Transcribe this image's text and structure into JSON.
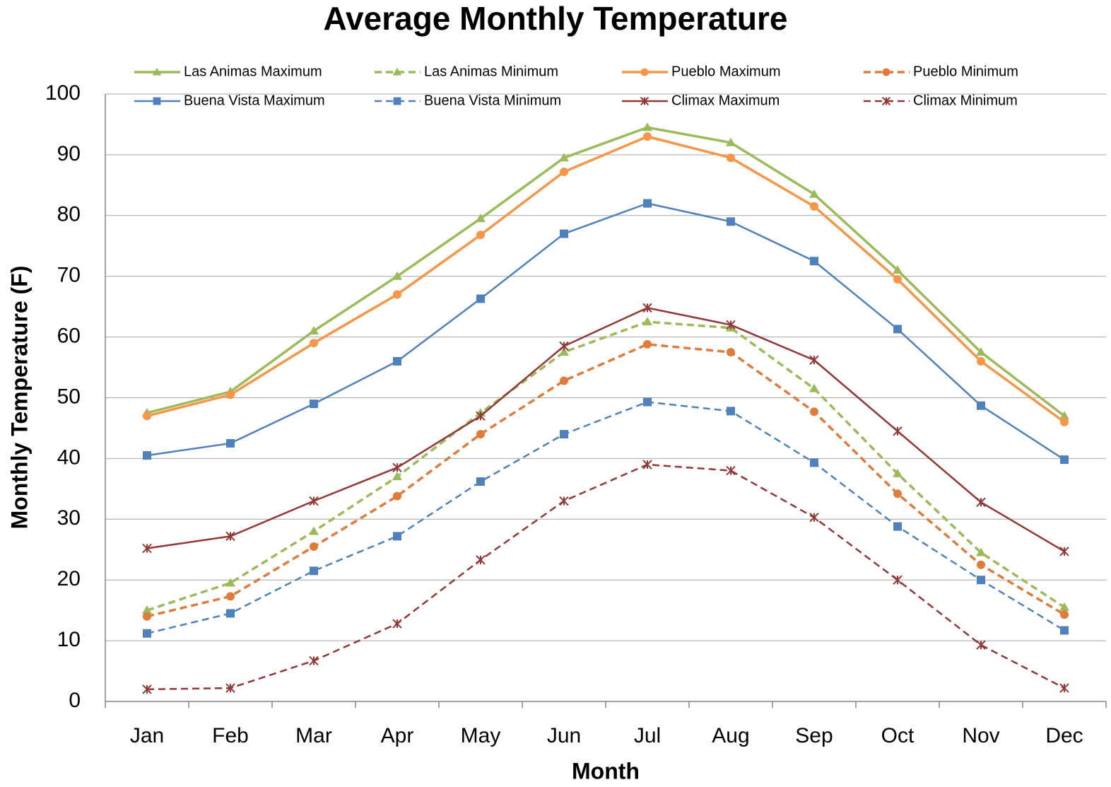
{
  "chart_data": {
    "type": "line",
    "title": "Average Monthly Temperature",
    "x_label": "Month",
    "y_label": "Monthly Temperature (F)",
    "categories": [
      "Jan",
      "Feb",
      "Mar",
      "Apr",
      "May",
      "Jun",
      "Jul",
      "Aug",
      "Sep",
      "Oct",
      "Nov",
      "Dec"
    ],
    "ylim": [
      0,
      100
    ],
    "yticks": [
      0,
      10,
      20,
      30,
      40,
      50,
      60,
      70,
      80,
      90,
      100
    ],
    "grid": true,
    "legend": "top",
    "series": [
      {
        "name": "Las Animas Maximum",
        "color": "#9bbb59",
        "marker": "triangle",
        "dashed": false,
        "values": [
          47.5,
          51,
          61,
          70,
          79.5,
          89.5,
          94.5,
          92,
          83.5,
          71,
          57.5,
          47
        ]
      },
      {
        "name": "Las Animas Minimum",
        "color": "#9bbb59",
        "marker": "triangle",
        "dashed": true,
        "values": [
          15,
          19.5,
          28,
          37,
          47.5,
          57.5,
          62.5,
          61.5,
          51.5,
          37.5,
          24.5,
          15.5
        ]
      },
      {
        "name": "Pueblo Maximum",
        "color": "#f79646",
        "marker": "circle",
        "dashed": false,
        "values": [
          47,
          50.5,
          59,
          67,
          76.8,
          87.2,
          93,
          89.5,
          81.5,
          69.5,
          56,
          46
        ]
      },
      {
        "name": "Pueblo Minimum",
        "color": "#e07b39",
        "marker": "circle",
        "dashed": true,
        "values": [
          14,
          17.3,
          25.5,
          33.8,
          44,
          52.8,
          58.8,
          57.5,
          47.7,
          34.2,
          22.5,
          14.3
        ]
      },
      {
        "name": "Buena Vista Maximum",
        "color": "#4f81bd",
        "marker": "square",
        "dashed": false,
        "values": [
          40.5,
          42.5,
          49,
          56,
          66.3,
          77,
          82,
          79,
          72.5,
          61.3,
          48.7,
          39.8
        ]
      },
      {
        "name": "Buena Vista Minimum",
        "color": "#4f81bd",
        "marker": "square",
        "dashed": true,
        "values": [
          11.2,
          14.5,
          21.5,
          27.2,
          36.2,
          44,
          49.3,
          47.8,
          39.3,
          28.8,
          20,
          11.7
        ]
      },
      {
        "name": "Climax Maximum",
        "color": "#953735",
        "marker": "star",
        "dashed": false,
        "values": [
          25.2,
          27.2,
          33,
          38.5,
          47,
          58.5,
          64.8,
          62,
          56.2,
          44.5,
          32.8,
          24.7
        ]
      },
      {
        "name": "Climax Minimum",
        "color": "#953735",
        "marker": "star",
        "dashed": true,
        "values": [
          2,
          2.2,
          6.7,
          12.8,
          23.3,
          33,
          39,
          38,
          30.3,
          20,
          9.3,
          2.2
        ]
      }
    ]
  }
}
